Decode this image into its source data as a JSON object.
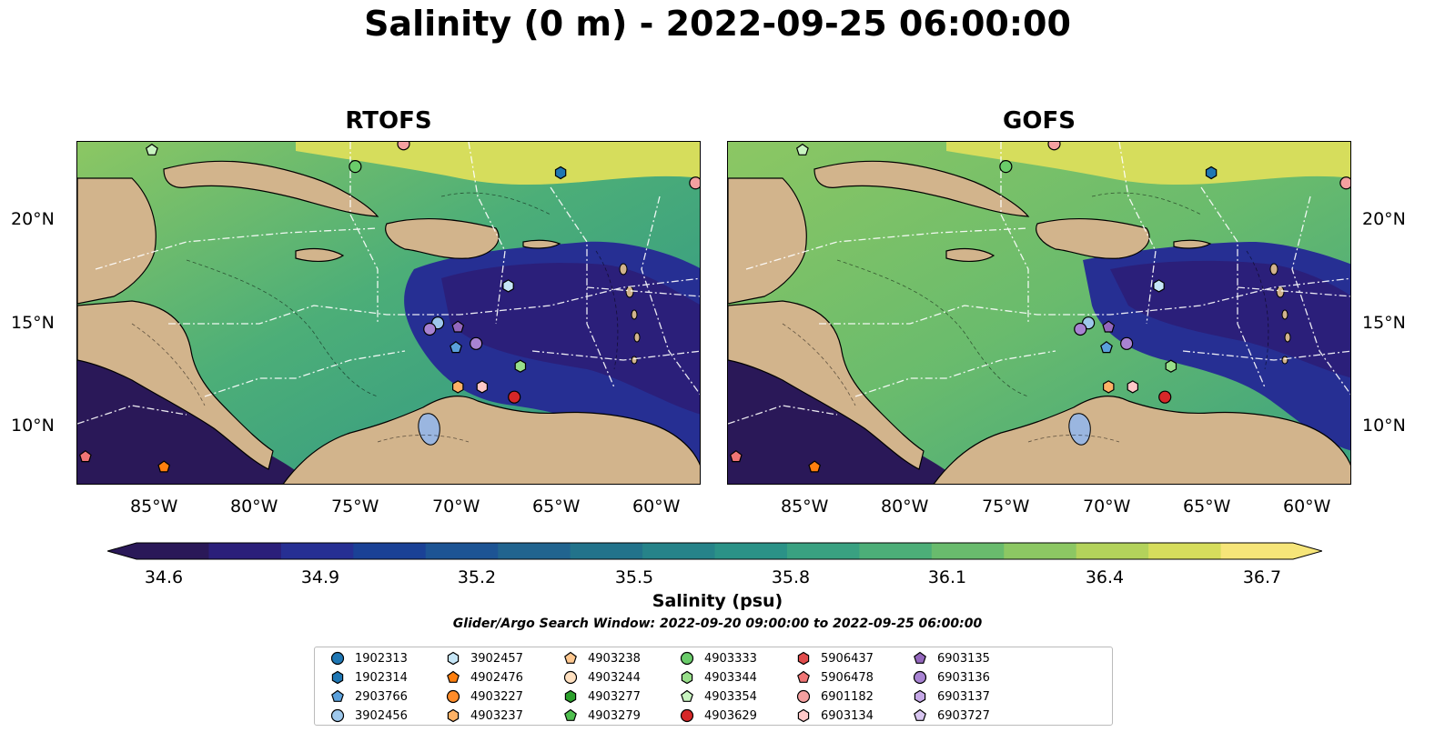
{
  "title": "Salinity (0 m) - 2022-09-25 06:00:00",
  "panels": [
    {
      "title": "RTOFS"
    },
    {
      "title": "GOFS"
    }
  ],
  "x_tick_labels": [
    "85°W",
    "80°W",
    "75°W",
    "70°W",
    "65°W",
    "60°W"
  ],
  "y_tick_labels": [
    "20°N",
    "15°N",
    "10°N"
  ],
  "colorbar": {
    "label": "Salinity (psu)",
    "ticks": [
      "34.6",
      "34.9",
      "35.2",
      "35.5",
      "35.8",
      "36.1",
      "36.4",
      "36.7"
    ],
    "range": [
      34.6,
      36.7
    ],
    "extend": "both",
    "colormap": "haline",
    "colors": [
      "#2a1858",
      "#2b1f7a",
      "#262f93",
      "#1a4196",
      "#1d5494",
      "#21648f",
      "#22738b",
      "#268389",
      "#2b9287",
      "#39a181",
      "#4cae78",
      "#69bb6d",
      "#8cc763",
      "#b3d25b",
      "#d6dd5c",
      "#f6e579"
    ]
  },
  "search_window": "Glider/Argo Search Window: 2022-09-20 09:00:00 to 2022-09-25 06:00:00",
  "legend": [
    {
      "id": "1902313",
      "marker": "circle",
      "color": "#1f77b4"
    },
    {
      "id": "1902314",
      "marker": "hexagon",
      "color": "#1f77b4"
    },
    {
      "id": "2903766",
      "marker": "pentagon",
      "color": "#5aa0db"
    },
    {
      "id": "3902456",
      "marker": "circle",
      "color": "#9ec8ec"
    },
    {
      "id": "3902457",
      "marker": "hexagon",
      "color": "#c6e6f7"
    },
    {
      "id": "4902476",
      "marker": "pentagon",
      "color": "#ff7f0e"
    },
    {
      "id": "4903227",
      "marker": "circle",
      "color": "#ff8c2a"
    },
    {
      "id": "4903237",
      "marker": "hexagon",
      "color": "#ffb266"
    },
    {
      "id": "4903238",
      "marker": "pentagon",
      "color": "#ffc890"
    },
    {
      "id": "4903244",
      "marker": "circle",
      "color": "#ffe0c0"
    },
    {
      "id": "4903277",
      "marker": "hexagon",
      "color": "#2ca02c"
    },
    {
      "id": "4903279",
      "marker": "pentagon",
      "color": "#4fbf4f"
    },
    {
      "id": "4903333",
      "marker": "circle",
      "color": "#6acc6a"
    },
    {
      "id": "4903344",
      "marker": "hexagon",
      "color": "#98df8a"
    },
    {
      "id": "4903354",
      "marker": "pentagon",
      "color": "#c8f4c0"
    },
    {
      "id": "4903629",
      "marker": "circle",
      "color": "#d62728"
    },
    {
      "id": "5906437",
      "marker": "hexagon",
      "color": "#e04c4c"
    },
    {
      "id": "5906478",
      "marker": "pentagon",
      "color": "#f07575"
    },
    {
      "id": "6901182",
      "marker": "circle",
      "color": "#f4a0a0"
    },
    {
      "id": "6903134",
      "marker": "hexagon",
      "color": "#ffc8c8"
    },
    {
      "id": "6903135",
      "marker": "pentagon",
      "color": "#9467bd"
    },
    {
      "id": "6903136",
      "marker": "circle",
      "color": "#a883d2"
    },
    {
      "id": "6903137",
      "marker": "hexagon",
      "color": "#c5a8e6"
    },
    {
      "id": "6903727",
      "marker": "pentagon",
      "color": "#d8c6f0"
    }
  ],
  "floats": [
    {
      "id": "4903354",
      "lon": -85.3,
      "lat": 23.4
    },
    {
      "id": "4903333",
      "lon": -75.2,
      "lat": 22.6
    },
    {
      "id": "6901182",
      "lon": -72.8,
      "lat": 23.7
    },
    {
      "id": "1902314",
      "lon": -65.0,
      "lat": 22.3
    },
    {
      "id": "6901182",
      "lon": -58.3,
      "lat": 21.8
    },
    {
      "id": "3902457",
      "lon": -67.6,
      "lat": 16.8
    },
    {
      "id": "3902456",
      "lon": -71.1,
      "lat": 15.0
    },
    {
      "id": "6903136",
      "lon": -71.5,
      "lat": 14.7
    },
    {
      "id": "6903135",
      "lon": -70.1,
      "lat": 14.8
    },
    {
      "id": "6903136",
      "lon": -69.2,
      "lat": 14.0
    },
    {
      "id": "2903766",
      "lon": -70.2,
      "lat": 13.8
    },
    {
      "id": "4903344",
      "lon": -67.0,
      "lat": 12.9
    },
    {
      "id": "4903237",
      "lon": -70.1,
      "lat": 11.9
    },
    {
      "id": "6903134",
      "lon": -68.9,
      "lat": 11.9
    },
    {
      "id": "4903629",
      "lon": -67.3,
      "lat": 11.4
    },
    {
      "id": "5906478",
      "lon": -88.6,
      "lat": 8.5
    },
    {
      "id": "4902476",
      "lon": -84.7,
      "lat": 8.0
    }
  ]
}
